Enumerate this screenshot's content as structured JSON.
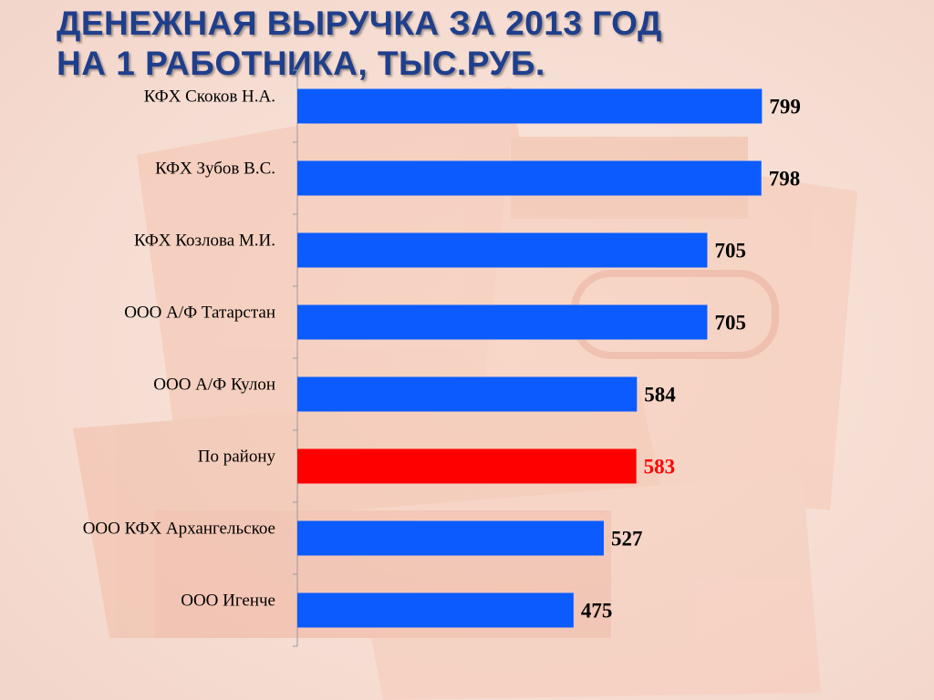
{
  "title": {
    "line1": "ДЕНЕЖНАЯ ВЫРУЧКА ЗА 2013 ГОД",
    "line2": "НА 1 РАБОТНИКА, ТЫС.РУБ."
  },
  "colors": {
    "bar": "#0b5bff",
    "highlight": "#ff0000",
    "label": "#000000",
    "title": "#1f3f8c"
  },
  "chart_data": {
    "type": "bar",
    "orientation": "horizontal",
    "title": "ДЕНЕЖНАЯ ВЫРУЧКА ЗА 2013 ГОД НА 1 РАБОТНИКА, ТЫС.РУБ.",
    "categories": [
      "КФХ Скоков Н.А.",
      "КФХ Зубов В.С.",
      "КФХ Козлова М.И.",
      "ООО А/Ф Татарстан",
      "ООО А/Ф Кулон",
      "По району",
      "ООО КФХ Архангельское",
      "ООО Игенче"
    ],
    "values": [
      799,
      798,
      705,
      705,
      584,
      583,
      527,
      475
    ],
    "data_labels": [
      "799",
      "798",
      "705",
      "705",
      "584",
      "583",
      "527",
      "475"
    ],
    "highlight_index": 5,
    "xlim": [
      0,
      800
    ],
    "grid": false,
    "legend": "none"
  }
}
